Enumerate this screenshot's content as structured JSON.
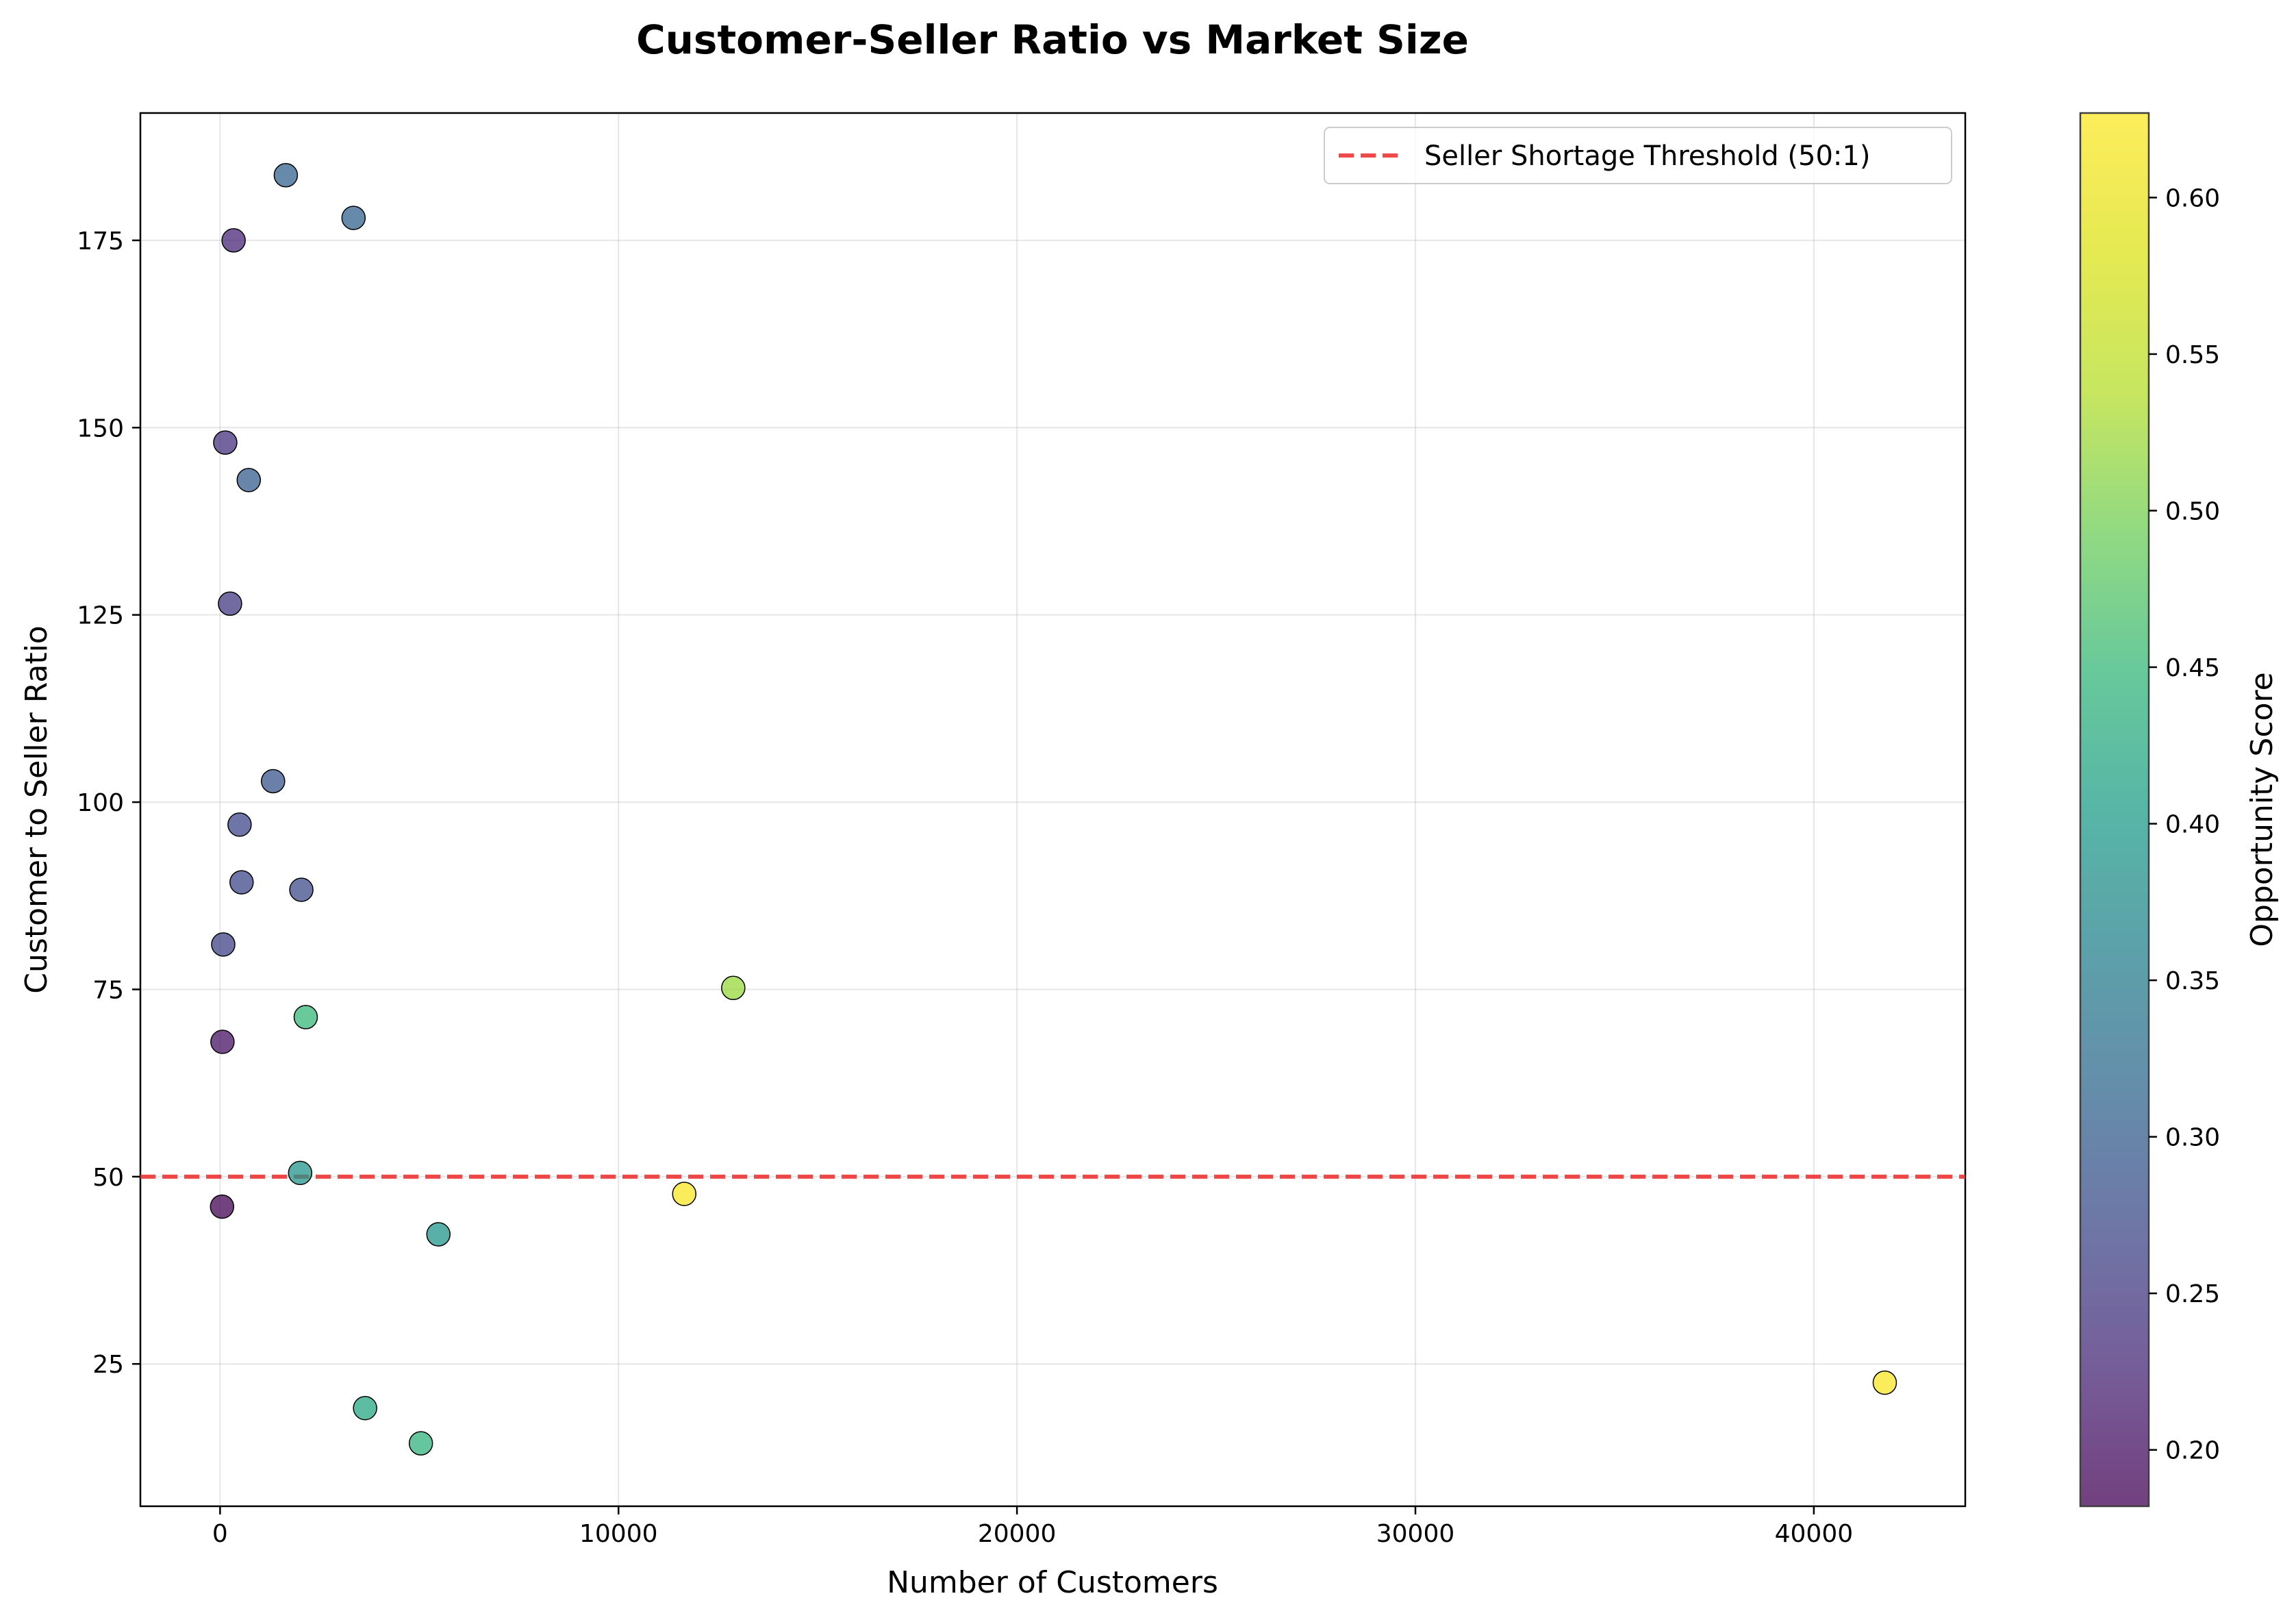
{
  "chart_data": {
    "type": "scatter",
    "title": "Customer-Seller Ratio vs Market Size",
    "xlabel": "Number of Customers",
    "ylabel": "Customer to Seller Ratio",
    "xlim": [
      -2000,
      43800
    ],
    "ylim": [
      6,
      192
    ],
    "xticks": [
      0,
      10000,
      20000,
      30000,
      40000
    ],
    "yticks": [
      25,
      50,
      75,
      100,
      125,
      150,
      175
    ],
    "grid": true,
    "legend_position": "top-right",
    "colormap": "viridis",
    "colorbar": {
      "label": "Opportunity Score",
      "range": [
        0.182,
        0.627
      ],
      "ticks": [
        0.2,
        0.25,
        0.3,
        0.35,
        0.4,
        0.45,
        0.5,
        0.55,
        0.6
      ],
      "tick_labels": [
        "0.20",
        "0.25",
        "0.30",
        "0.35",
        "0.40",
        "0.45",
        "0.50",
        "0.55",
        "0.60"
      ]
    },
    "threshold": {
      "label": "Seller Shortage Threshold (50:1)",
      "y": 50,
      "color": "#ee2a2a"
    },
    "points": [
      {
        "x": 1650,
        "y": 183.7,
        "score": 0.305
      },
      {
        "x": 3350,
        "y": 178.0,
        "score": 0.31
      },
      {
        "x": 340,
        "y": 175.0,
        "score": 0.225
      },
      {
        "x": 130,
        "y": 148.0,
        "score": 0.24
      },
      {
        "x": 720,
        "y": 143.0,
        "score": 0.3
      },
      {
        "x": 250,
        "y": 126.5,
        "score": 0.25
      },
      {
        "x": 1330,
        "y": 102.8,
        "score": 0.29
      },
      {
        "x": 490,
        "y": 97.0,
        "score": 0.27
      },
      {
        "x": 540,
        "y": 89.3,
        "score": 0.27
      },
      {
        "x": 2040,
        "y": 88.3,
        "score": 0.275
      },
      {
        "x": 80,
        "y": 81.0,
        "score": 0.26
      },
      {
        "x": 12880,
        "y": 75.2,
        "score": 0.52
      },
      {
        "x": 2150,
        "y": 71.3,
        "score": 0.45
      },
      {
        "x": 60,
        "y": 68.0,
        "score": 0.2
      },
      {
        "x": 2010,
        "y": 50.5,
        "score": 0.39
      },
      {
        "x": 50,
        "y": 46.0,
        "score": 0.185
      },
      {
        "x": 11650,
        "y": 47.7,
        "score": 0.62
      },
      {
        "x": 5480,
        "y": 42.3,
        "score": 0.39
      },
      {
        "x": 3640,
        "y": 19.1,
        "score": 0.42
      },
      {
        "x": 5040,
        "y": 14.4,
        "score": 0.44
      },
      {
        "x": 41780,
        "y": 22.5,
        "score": 0.62
      }
    ]
  }
}
